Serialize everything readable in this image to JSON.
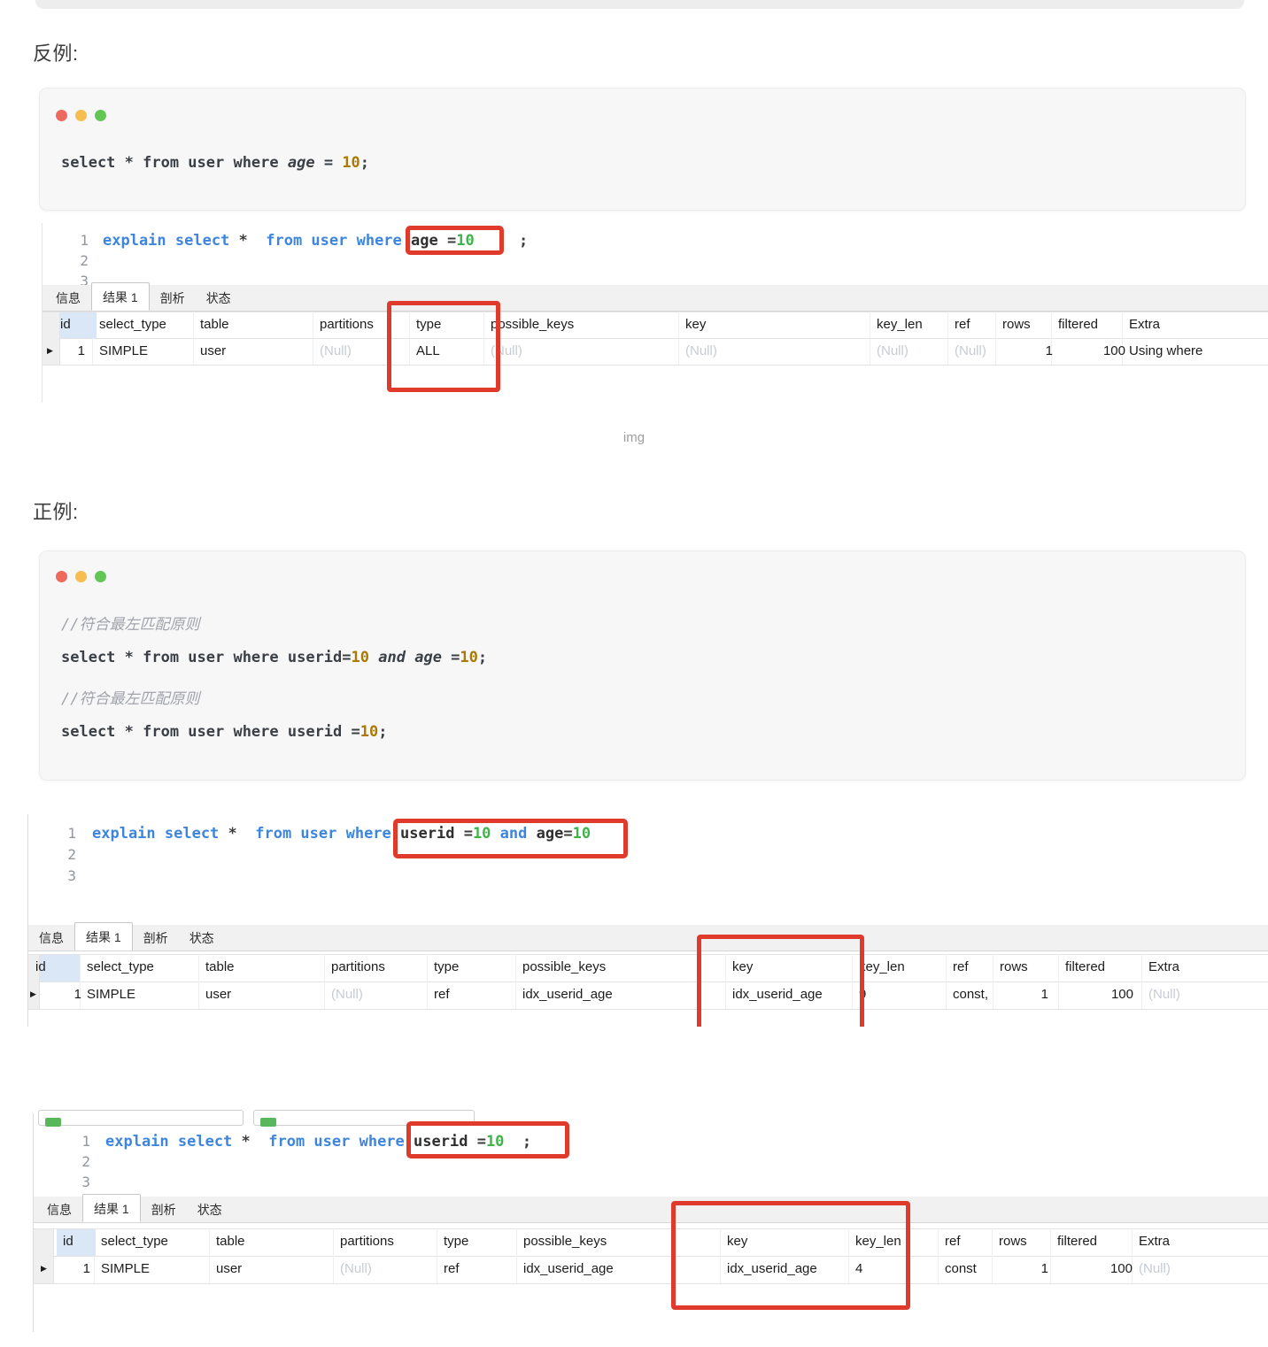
{
  "headings": {
    "negative": "反例:",
    "positive": "正例:"
  },
  "caption": {
    "img_label": "img"
  },
  "colors": {
    "accent_red": "#e03a2c",
    "keyword_blue": "#3d85dd",
    "value_green": "#3eb44a",
    "number_gold": "#ab7a04"
  },
  "icons": {
    "window_dots": [
      "close-dot",
      "minimize-dot",
      "maximize-dot"
    ],
    "row_marker": "current-row-arrow",
    "toolbar_fragment": "table-icon"
  },
  "code_blocks": {
    "negative": {
      "lines": [
        {
          "segments": [
            {
              "text": "select * from user where ",
              "style": "code"
            },
            {
              "text": "age",
              "style": "it"
            },
            {
              "text": " = ",
              "style": "code"
            },
            {
              "text": "10",
              "style": "num"
            },
            {
              "text": ";",
              "style": "code"
            }
          ]
        }
      ]
    },
    "positive": {
      "lines": [
        {
          "segments": [
            {
              "text": "//符合最左匹配原则",
              "style": "cmt"
            }
          ]
        },
        {
          "segments": [
            {
              "text": "select * from user where userid=",
              "style": "code"
            },
            {
              "text": "10",
              "style": "num"
            },
            {
              "text": " ",
              "style": "code"
            },
            {
              "text": "and",
              "style": "it"
            },
            {
              "text": " ",
              "style": "code"
            },
            {
              "text": "age",
              "style": "it"
            },
            {
              "text": " =",
              "style": "code"
            },
            {
              "text": "10",
              "style": "num"
            },
            {
              "text": ";",
              "style": "code"
            }
          ]
        },
        {
          "segments": [
            {
              "text": "//符合最左匹配原则",
              "style": "cmt"
            }
          ]
        },
        {
          "segments": [
            {
              "text": "select * from user where userid =",
              "style": "code"
            },
            {
              "text": "10",
              "style": "num"
            },
            {
              "text": ";",
              "style": "code"
            }
          ]
        }
      ]
    }
  },
  "explain_shots": [
    {
      "name": "explain-full-table-scan",
      "line_numbers": [
        "1",
        "2",
        "3"
      ],
      "query": {
        "before": [
          {
            "text": "explain select",
            "style": "kw"
          },
          {
            "text": " * ",
            "style": "plain"
          },
          {
            "text": " from user where",
            "style": "kw"
          },
          {
            "text": " ",
            "style": "plain"
          }
        ],
        "boxed": [
          {
            "text": "age",
            "style": "id"
          },
          {
            "text": " =",
            "style": "plain"
          },
          {
            "text": "10",
            "style": "val"
          }
        ],
        "after": [
          {
            "text": " ;",
            "style": "plain"
          }
        ]
      },
      "tabs": [
        {
          "label": "信息",
          "active": false
        },
        {
          "label": "结果 1",
          "active": true
        },
        {
          "label": "剖析",
          "active": false
        },
        {
          "label": "状态",
          "active": false
        }
      ],
      "columns": [
        "id",
        "select_type",
        "table",
        "partitions",
        "type",
        "possible_keys",
        "key",
        "key_len",
        "ref",
        "rows",
        "filtered",
        "Extra"
      ],
      "row": [
        "1",
        "SIMPLE",
        "user",
        "(Null)",
        "ALL",
        "(Null)",
        "(Null)",
        "(Null)",
        "(Null)",
        "1",
        "100",
        "Using where"
      ]
    },
    {
      "name": "explain-index-userid-and-age",
      "line_numbers": [
        "1",
        "2",
        "3"
      ],
      "query": {
        "before": [
          {
            "text": "explain select",
            "style": "kw"
          },
          {
            "text": " * ",
            "style": "plain"
          },
          {
            "text": " from user where",
            "style": "kw"
          },
          {
            "text": " ",
            "style": "plain"
          }
        ],
        "boxed": [
          {
            "text": "userid",
            "style": "id"
          },
          {
            "text": " =",
            "style": "plain"
          },
          {
            "text": "10",
            "style": "val"
          },
          {
            "text": " ",
            "style": "plain"
          },
          {
            "text": "and",
            "style": "kw"
          },
          {
            "text": " ",
            "style": "plain"
          },
          {
            "text": "age",
            "style": "id"
          },
          {
            "text": "=",
            "style": "plain"
          },
          {
            "text": "10",
            "style": "val"
          }
        ],
        "after": []
      },
      "tabs": [
        {
          "label": "信息",
          "active": false
        },
        {
          "label": "结果 1",
          "active": true
        },
        {
          "label": "剖析",
          "active": false
        },
        {
          "label": "状态",
          "active": false
        }
      ],
      "columns": [
        "id",
        "select_type",
        "table",
        "partitions",
        "type",
        "possible_keys",
        "key",
        "key_len",
        "ref",
        "rows",
        "filtered",
        "Extra"
      ],
      "row": [
        "1",
        "SIMPLE",
        "user",
        "(Null)",
        "ref",
        "idx_userid_age",
        "idx_userid_age",
        "9",
        "const,",
        "1",
        "100",
        "(Null)"
      ]
    },
    {
      "name": "explain-index-userid-only",
      "line_numbers": [
        "1",
        "2",
        "3"
      ],
      "query": {
        "before": [
          {
            "text": "explain select",
            "style": "kw"
          },
          {
            "text": " * ",
            "style": "plain"
          },
          {
            "text": " from user where",
            "style": "kw"
          },
          {
            "text": " ",
            "style": "plain"
          }
        ],
        "boxed": [
          {
            "text": "userid",
            "style": "id"
          },
          {
            "text": " =",
            "style": "plain"
          },
          {
            "text": "10",
            "style": "val"
          },
          {
            "text": "  ;",
            "style": "plain"
          }
        ],
        "after": []
      },
      "tabs": [
        {
          "label": "信息",
          "active": false
        },
        {
          "label": "结果 1",
          "active": true
        },
        {
          "label": "剖析",
          "active": false
        },
        {
          "label": "状态",
          "active": false
        }
      ],
      "columns": [
        "id",
        "select_type",
        "table",
        "partitions",
        "type",
        "possible_keys",
        "key",
        "key_len",
        "ref",
        "rows",
        "filtered",
        "Extra"
      ],
      "row": [
        "1",
        "SIMPLE",
        "user",
        "(Null)",
        "ref",
        "idx_userid_age",
        "idx_userid_age",
        "4",
        "const",
        "1",
        "100",
        "(Null)"
      ]
    }
  ]
}
